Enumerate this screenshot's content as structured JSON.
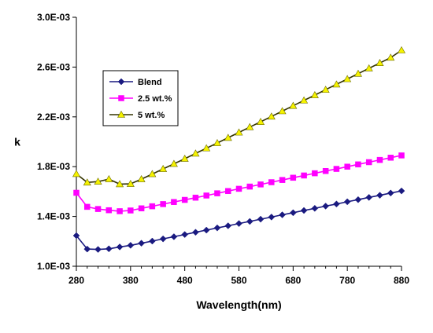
{
  "chart_data": {
    "type": "line",
    "xlabel": "Wavelength(nm)",
    "ylabel": "k",
    "xlim": [
      280,
      880
    ],
    "ylim": [
      0.001,
      0.003
    ],
    "x_ticks": [
      280,
      380,
      480,
      580,
      680,
      780,
      880
    ],
    "x_tick_labels": [
      "280",
      "380",
      "480",
      "580",
      "680",
      "780",
      "880"
    ],
    "y_ticks": [
      0.001,
      0.0014,
      0.0018,
      0.0022,
      0.0026,
      0.003
    ],
    "y_tick_labels": [
      "1.0E-03",
      "1.4E-03",
      "1.8E-03",
      "2.2E-03",
      "2.6E-03",
      "3.0E-03"
    ],
    "grid": false,
    "legend_position": "top-left inside",
    "x": [
      280,
      300,
      320,
      340,
      360,
      380,
      400,
      420,
      440,
      460,
      480,
      500,
      520,
      540,
      560,
      580,
      600,
      620,
      640,
      660,
      680,
      700,
      720,
      740,
      760,
      780,
      800,
      820,
      840,
      860,
      880
    ],
    "series": [
      {
        "name": "Blend",
        "color": "#1a1a80",
        "marker": "diamond",
        "values": [
          0.001246,
          0.001138,
          0.001135,
          0.00114,
          0.001155,
          0.001168,
          0.001185,
          0.001202,
          0.00122,
          0.001237,
          0.001255,
          0.001273,
          0.00129,
          0.001308,
          0.001325,
          0.001343,
          0.00136,
          0.001378,
          0.001395,
          0.001413,
          0.00143,
          0.001448,
          0.001465,
          0.001483,
          0.0015,
          0.001518,
          0.001535,
          0.001553,
          0.00157,
          0.001588,
          0.001605
        ]
      },
      {
        "name": "2.5 wt.%",
        "color": "#ff00ff",
        "marker": "square",
        "values": [
          0.00159,
          0.001477,
          0.00146,
          0.00145,
          0.001442,
          0.001448,
          0.001465,
          0.001482,
          0.001499,
          0.001516,
          0.001533,
          0.001551,
          0.001568,
          0.001586,
          0.001604,
          0.001622,
          0.00164,
          0.001657,
          0.001675,
          0.001693,
          0.001711,
          0.001729,
          0.001747,
          0.001765,
          0.001782,
          0.0018,
          0.001818,
          0.001836,
          0.001854,
          0.001872,
          0.00189
        ]
      },
      {
        "name": "5 wt.%",
        "color": "#f5f200",
        "marker": "triangle",
        "values": [
          0.001742,
          0.001673,
          0.00168,
          0.0017,
          0.00166,
          0.001662,
          0.0017,
          0.001741,
          0.001782,
          0.001823,
          0.001864,
          0.001906,
          0.001948,
          0.00199,
          0.002032,
          0.002075,
          0.002118,
          0.00216,
          0.002203,
          0.002246,
          0.002289,
          0.002332,
          0.002375,
          0.002418,
          0.002461,
          0.002504,
          0.002547,
          0.00259,
          0.002633,
          0.002676,
          0.002735
        ]
      }
    ]
  }
}
